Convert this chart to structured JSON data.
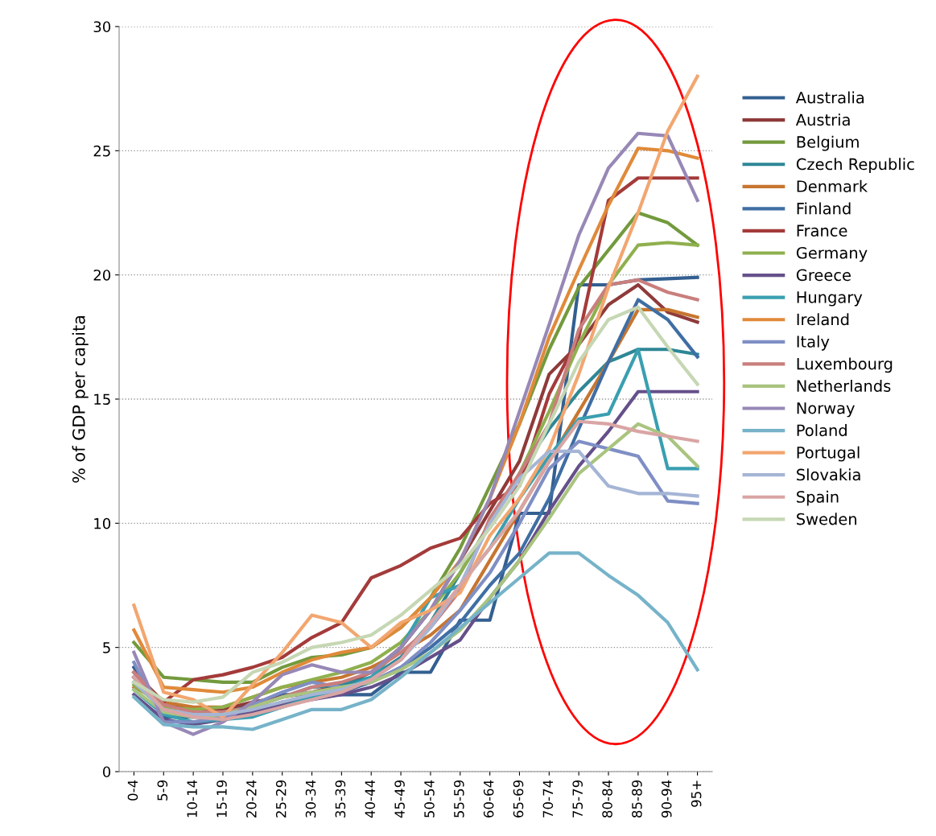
{
  "chart_data": {
    "type": "line",
    "ylabel": "% of GDP per capita",
    "categories": [
      "0-4",
      "5-9",
      "10-14",
      "15-19",
      "20-24",
      "25-29",
      "30-34",
      "35-39",
      "40-44",
      "45-49",
      "50-54",
      "55-59",
      "60-64",
      "65-69",
      "70-74",
      "75-79",
      "80-84",
      "85-89",
      "90-94",
      "95+"
    ],
    "ylim": [
      0,
      30
    ],
    "yticks": [
      0,
      5,
      10,
      15,
      20,
      25,
      30
    ],
    "grid": "y",
    "legend": "right",
    "marker": "none",
    "line_style": "solid",
    "series": [
      {
        "name": "Australia",
        "color": "#335f91",
        "values": [
          4.2,
          2.2,
          2.2,
          2.6,
          2.6,
          3.1,
          3.1,
          3.1,
          3.1,
          4.0,
          4.0,
          6.1,
          6.1,
          10.4,
          10.4,
          19.6,
          19.6,
          19.8,
          19.85,
          19.9
        ]
      },
      {
        "name": "Austria",
        "color": "#8f3a3a",
        "values": [
          4.0,
          2.8,
          2.5,
          2.5,
          2.8,
          3.0,
          3.2,
          3.5,
          4.0,
          5.0,
          6.5,
          8.5,
          10.5,
          12.5,
          16.0,
          17.2,
          18.8,
          19.6,
          18.5,
          18.1
        ]
      },
      {
        "name": "Belgium",
        "color": "#739a3d",
        "values": [
          5.2,
          3.8,
          3.7,
          3.6,
          3.6,
          4.2,
          4.6,
          4.7,
          5.0,
          5.8,
          7.0,
          9.0,
          11.5,
          14.0,
          17.0,
          19.5,
          21.0,
          22.5,
          22.1,
          21.2
        ]
      },
      {
        "name": "Czech Republic",
        "color": "#2e8796",
        "values": [
          3.6,
          2.5,
          2.3,
          2.4,
          2.6,
          3.0,
          3.4,
          3.5,
          3.8,
          4.6,
          6.0,
          8.0,
          10.0,
          12.0,
          13.8,
          15.3,
          16.5,
          17.0,
          17.0,
          16.8
        ]
      },
      {
        "name": "Denmark",
        "color": "#c77630",
        "values": [
          3.4,
          2.8,
          2.6,
          2.6,
          3.0,
          3.4,
          3.6,
          3.8,
          4.2,
          4.8,
          5.5,
          6.5,
          8.5,
          10.5,
          12.5,
          14.5,
          16.5,
          18.6,
          18.6,
          18.3
        ]
      },
      {
        "name": "Finland",
        "color": "#3f6ea3",
        "values": [
          3.8,
          2.4,
          2.2,
          2.2,
          2.4,
          2.8,
          3.0,
          3.2,
          3.6,
          4.2,
          5.0,
          6.0,
          7.5,
          8.8,
          11.0,
          13.8,
          16.5,
          19.0,
          18.2,
          16.7
        ]
      },
      {
        "name": "France",
        "color": "#a33b3a",
        "values": [
          3.8,
          2.8,
          3.7,
          3.9,
          4.2,
          4.6,
          5.4,
          6.0,
          7.8,
          8.3,
          9.0,
          9.4,
          10.8,
          11.5,
          15.2,
          17.5,
          23.0,
          23.9,
          23.9,
          23.9
        ]
      },
      {
        "name": "Germany",
        "color": "#8fb04e",
        "values": [
          3.5,
          2.6,
          2.5,
          2.6,
          3.0,
          3.4,
          3.7,
          4.0,
          4.4,
          5.2,
          6.5,
          8.0,
          10.0,
          12.0,
          14.5,
          17.2,
          19.6,
          21.2,
          21.3,
          21.2
        ]
      },
      {
        "name": "Greece",
        "color": "#65508a",
        "values": [
          3.1,
          2.1,
          1.9,
          2.1,
          2.4,
          2.7,
          2.9,
          3.1,
          3.4,
          3.9,
          4.6,
          5.3,
          7.0,
          8.5,
          10.5,
          12.3,
          13.7,
          15.3,
          15.3,
          15.3
        ]
      },
      {
        "name": "Hungary",
        "color": "#3a9fb0",
        "values": [
          3.3,
          2.3,
          2.0,
          2.1,
          2.2,
          2.6,
          3.0,
          3.3,
          3.8,
          5.0,
          7.0,
          7.5,
          9.0,
          11.0,
          12.7,
          14.2,
          14.4,
          17.0,
          12.2,
          12.2
        ]
      },
      {
        "name": "Ireland",
        "color": "#e08a3a",
        "values": [
          5.7,
          3.4,
          3.3,
          3.2,
          3.4,
          4.0,
          4.5,
          4.8,
          5.0,
          5.8,
          7.0,
          8.5,
          11.0,
          14.0,
          17.5,
          20.2,
          22.8,
          25.1,
          25.0,
          24.7
        ]
      },
      {
        "name": "Italy",
        "color": "#7f8fc5",
        "values": [
          4.4,
          2.0,
          2.0,
          2.2,
          2.7,
          3.2,
          3.6,
          3.4,
          3.6,
          4.2,
          5.2,
          6.5,
          8.0,
          10.0,
          12.2,
          13.3,
          13.0,
          12.7,
          10.9,
          10.8
        ]
      },
      {
        "name": "Luxembourg",
        "color": "#c97f7d",
        "values": [
          4.0,
          2.7,
          2.4,
          2.4,
          2.6,
          3.0,
          3.4,
          3.6,
          4.0,
          4.8,
          5.8,
          7.3,
          10.2,
          12.0,
          14.0,
          17.8,
          19.6,
          19.8,
          19.3,
          19.0
        ]
      },
      {
        "name": "Netherlands",
        "color": "#a9c47f",
        "values": [
          3.3,
          2.4,
          2.2,
          2.3,
          2.6,
          3.0,
          3.2,
          3.4,
          3.6,
          4.1,
          4.8,
          5.7,
          7.0,
          8.5,
          10.2,
          12.0,
          13.0,
          14.0,
          13.5,
          12.3
        ]
      },
      {
        "name": "Norway",
        "color": "#9788b6",
        "values": [
          4.8,
          2.0,
          1.5,
          2.0,
          2.8,
          3.9,
          4.3,
          4.0,
          4.0,
          5.0,
          6.5,
          8.5,
          11.0,
          14.5,
          18.0,
          21.6,
          24.3,
          25.7,
          25.6,
          23.0
        ]
      },
      {
        "name": "Poland",
        "color": "#76b3c9",
        "values": [
          3.0,
          1.9,
          1.8,
          1.8,
          1.7,
          2.1,
          2.5,
          2.5,
          2.9,
          3.8,
          4.8,
          5.8,
          6.8,
          7.8,
          8.8,
          8.8,
          7.9,
          7.1,
          6.0,
          4.1
        ]
      },
      {
        "name": "Portugal",
        "color": "#f2a66f",
        "values": [
          6.7,
          3.2,
          2.9,
          2.2,
          3.5,
          4.8,
          6.3,
          6.0,
          5.0,
          6.0,
          6.5,
          7.2,
          9.5,
          11.0,
          13.0,
          16.0,
          19.5,
          22.5,
          25.8,
          28.0
        ]
      },
      {
        "name": "Slovakia",
        "color": "#a5b5d5",
        "values": [
          3.6,
          2.5,
          2.3,
          2.3,
          2.5,
          2.8,
          3.1,
          3.3,
          3.7,
          4.5,
          5.8,
          7.5,
          10.0,
          11.8,
          12.9,
          12.9,
          11.5,
          11.2,
          11.2,
          11.1
        ]
      },
      {
        "name": "Spain",
        "color": "#d9a5a4",
        "values": [
          3.8,
          2.5,
          2.2,
          2.1,
          2.3,
          2.6,
          2.9,
          3.2,
          3.7,
          4.5,
          6.0,
          7.5,
          9.0,
          10.5,
          12.5,
          14.1,
          14.0,
          13.7,
          13.5,
          13.3
        ]
      },
      {
        "name": "Sweden",
        "color": "#c6d7b4",
        "values": [
          3.6,
          2.9,
          2.8,
          3.0,
          4.0,
          4.4,
          5.0,
          5.2,
          5.5,
          6.3,
          7.3,
          8.3,
          9.8,
          11.5,
          14.0,
          16.5,
          18.2,
          18.7,
          17.1,
          15.6
        ]
      }
    ]
  }
}
